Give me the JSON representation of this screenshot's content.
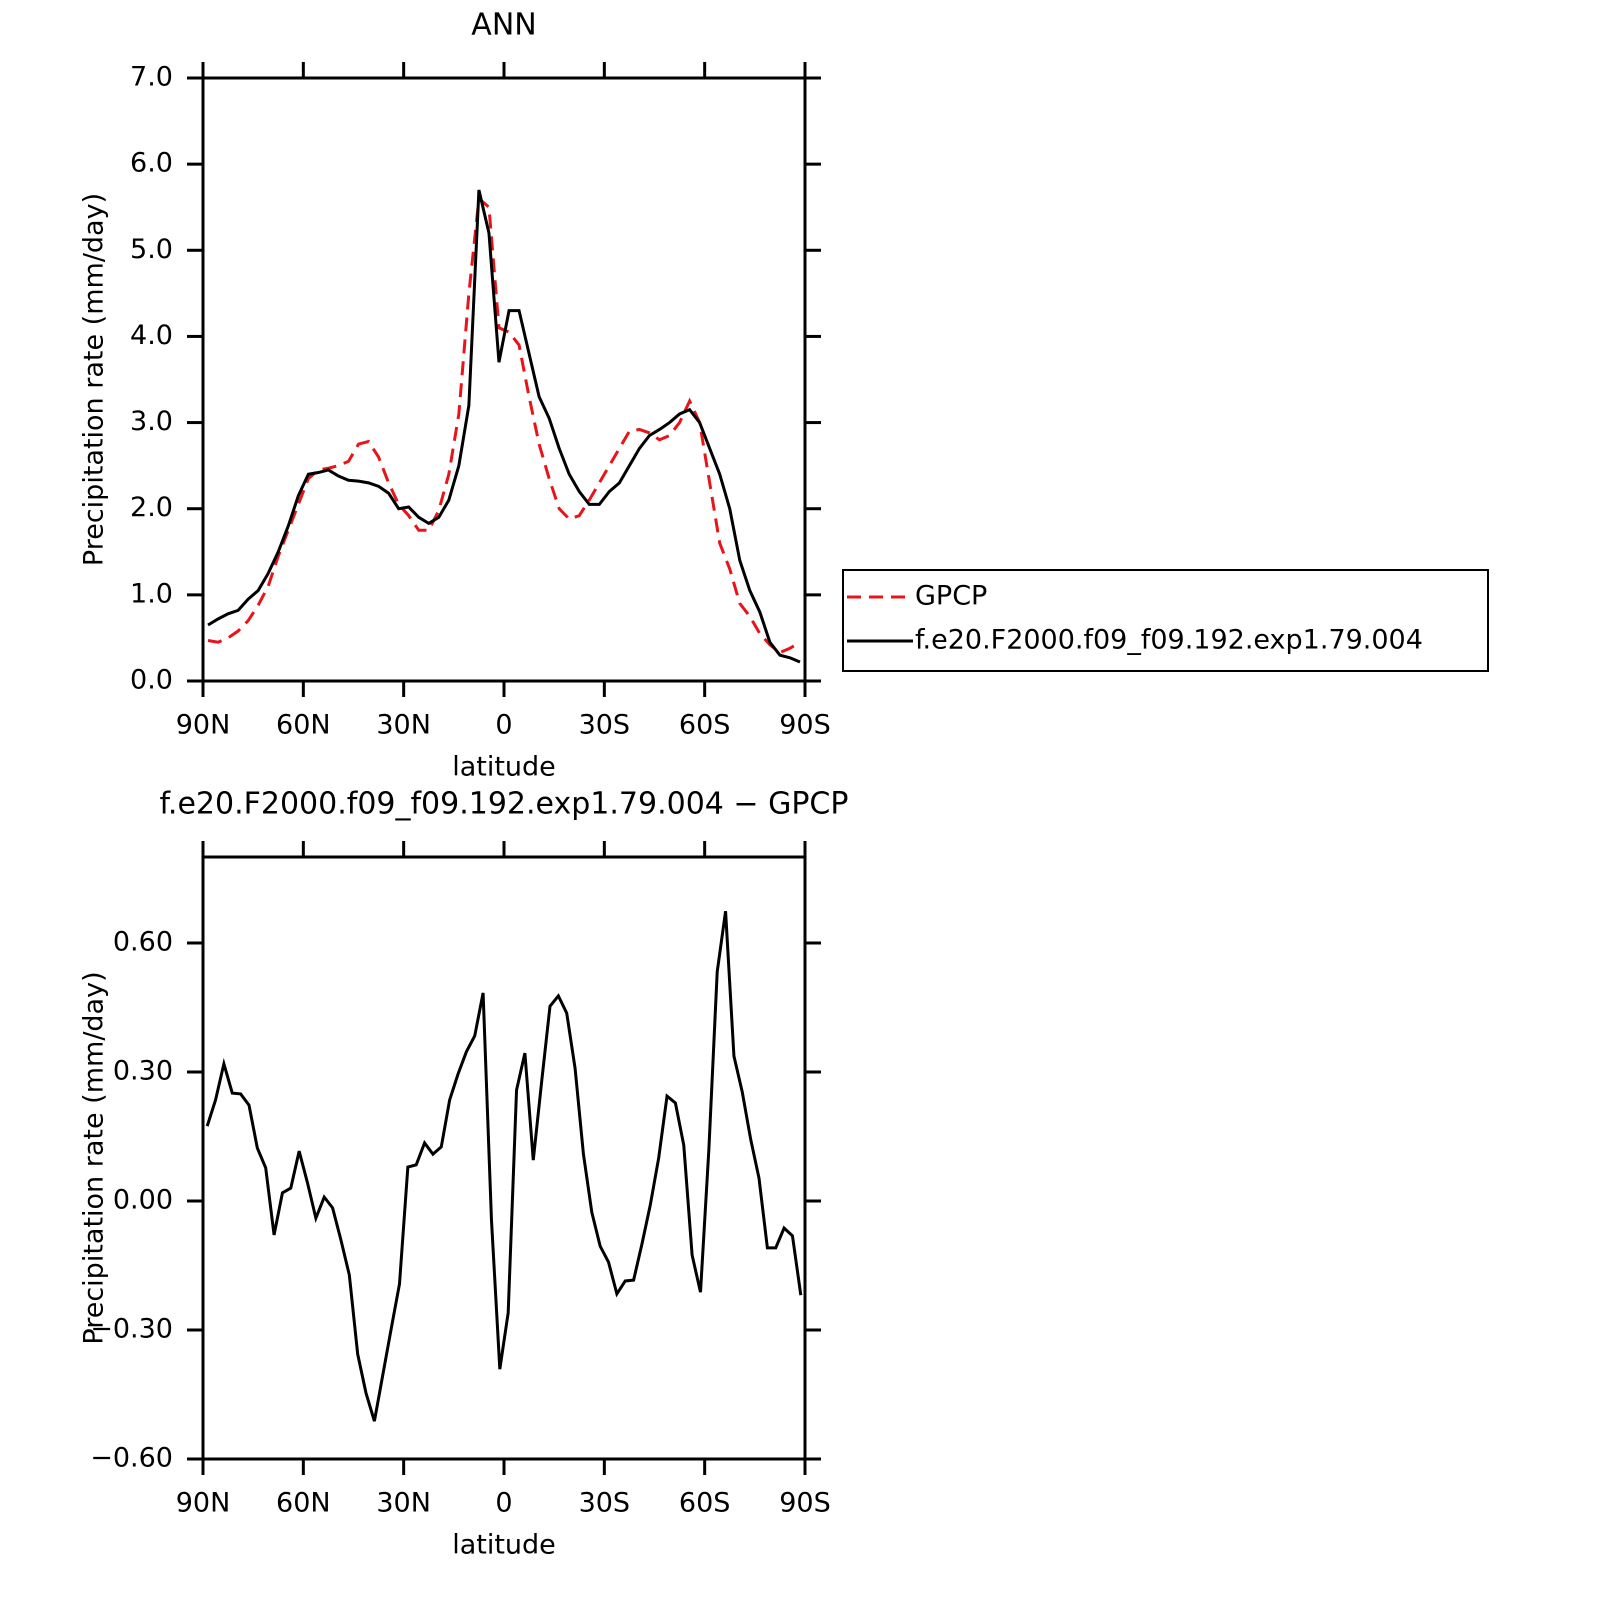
{
  "chart_data": [
    {
      "type": "line",
      "title": "ANN",
      "xlabel": "latitude",
      "ylabel": "Precipitation rate (mm/day)",
      "x": [
        88.5,
        85.5,
        82.5,
        79.5,
        76.5,
        73.5,
        70.5,
        67.5,
        64.5,
        61.5,
        58.5,
        55.5,
        52.5,
        49.5,
        46.5,
        43.5,
        40.5,
        37.5,
        34.5,
        31.5,
        28.5,
        25.5,
        22.5,
        19.5,
        16.5,
        13.5,
        10.5,
        7.5,
        4.5,
        1.5,
        -1.5,
        -4.5,
        -7.5,
        -10.5,
        -13.5,
        -16.5,
        -19.5,
        -22.5,
        -25.5,
        -28.5,
        -31.5,
        -34.5,
        -37.5,
        -40.5,
        -43.5,
        -46.5,
        -49.5,
        -52.5,
        -55.5,
        -58.5,
        -61.5,
        -64.5,
        -67.5,
        -70.5,
        -73.5,
        -76.5,
        -79.5,
        -82.5,
        -85.5,
        -88.5
      ],
      "series": [
        {
          "name": "GPCP",
          "color": "#e8141b",
          "style": "dashed",
          "values": [
            0.47,
            0.45,
            0.5,
            0.58,
            0.7,
            0.88,
            1.1,
            1.45,
            1.75,
            2.05,
            2.35,
            2.45,
            2.47,
            2.5,
            2.55,
            2.75,
            2.78,
            2.6,
            2.3,
            2.05,
            1.92,
            1.75,
            1.75,
            1.98,
            2.4,
            3.1,
            4.5,
            5.6,
            5.5,
            4.1,
            4.05,
            3.9,
            3.3,
            2.75,
            2.35,
            2.0,
            1.88,
            1.92,
            2.1,
            2.3,
            2.5,
            2.7,
            2.9,
            2.92,
            2.88,
            2.8,
            2.85,
            3.0,
            3.25,
            3.0,
            2.3,
            1.6,
            1.3,
            0.9,
            0.75,
            0.55,
            0.42,
            0.33,
            0.38,
            0.45
          ]
        },
        {
          "name": "f.e20.F2000.f09_f09.192.exp1.79.004",
          "color": "#000000",
          "style": "solid",
          "values": [
            0.65,
            0.72,
            0.78,
            0.82,
            0.95,
            1.05,
            1.25,
            1.5,
            1.8,
            2.15,
            2.4,
            2.42,
            2.45,
            2.38,
            2.33,
            2.32,
            2.3,
            2.26,
            2.18,
            2.0,
            2.02,
            1.9,
            1.83,
            1.9,
            2.1,
            2.5,
            3.2,
            5.7,
            5.2,
            3.7,
            4.3,
            4.3,
            3.8,
            3.3,
            3.05,
            2.7,
            2.4,
            2.2,
            2.05,
            2.05,
            2.2,
            2.3,
            2.5,
            2.7,
            2.85,
            2.92,
            3.0,
            3.1,
            3.15,
            3.0,
            2.7,
            2.4,
            2.0,
            1.4,
            1.05,
            0.8,
            0.45,
            0.3,
            0.27,
            0.22
          ]
        }
      ],
      "xlim": [
        90,
        -90
      ],
      "xticks": [
        {
          "value": 90,
          "label": "90N"
        },
        {
          "value": 60,
          "label": "60N"
        },
        {
          "value": 30,
          "label": "30N"
        },
        0,
        {
          "value": -30,
          "label": "30S"
        },
        {
          "value": -60,
          "label": "60S"
        },
        {
          "value": -90,
          "label": "90S"
        }
      ],
      "ylim": [
        0,
        7
      ],
      "yticks": [
        {
          "value": 0,
          "label": "0.0"
        },
        {
          "value": 1,
          "label": "1.0"
        },
        {
          "value": 2,
          "label": "2.0"
        },
        {
          "value": 3,
          "label": "3.0"
        },
        {
          "value": 4,
          "label": "4.0"
        },
        {
          "value": 5,
          "label": "5.0"
        },
        {
          "value": 6,
          "label": "6.0"
        },
        {
          "value": 7,
          "label": "7.0"
        }
      ],
      "legend": "outside-right"
    },
    {
      "type": "line",
      "title": "f.e20.F2000.f09_f09.192.exp1.79.004 − GPCP",
      "xlabel": "latitude",
      "ylabel": "Precipitation rate (mm/day)",
      "x": [
        88.75,
        86.25,
        83.75,
        81.25,
        78.75,
        76.25,
        73.75,
        71.25,
        68.75,
        66.25,
        63.75,
        61.25,
        58.75,
        56.25,
        53.75,
        51.25,
        48.75,
        46.25,
        43.75,
        41.25,
        38.75,
        36.25,
        33.75,
        31.25,
        28.75,
        26.25,
        23.75,
        21.25,
        18.75,
        16.25,
        13.75,
        11.25,
        8.75,
        6.25,
        3.75,
        1.25,
        -1.25,
        -3.75,
        -6.25,
        -8.75,
        -11.25,
        -13.75,
        -16.25,
        -18.75,
        -21.25,
        -23.75,
        -26.25,
        -28.75,
        -31.25,
        -33.75,
        -36.25,
        -38.75,
        -41.25,
        -43.75,
        -46.25,
        -48.75,
        -51.25,
        -53.75,
        -56.25,
        -58.75,
        -61.25,
        -63.75,
        -66.25,
        -68.75,
        -71.25,
        -73.75,
        -76.25,
        -78.75,
        -81.25,
        -83.75,
        -86.25,
        -88.75
      ],
      "color": "#000000",
      "values": [
        0.174,
        0.235,
        0.319,
        0.251,
        0.249,
        0.223,
        0.123,
        0.077,
        -0.079,
        0.019,
        0.03,
        0.116,
        0.042,
        -0.04,
        0.009,
        -0.016,
        -0.091,
        -0.172,
        -0.356,
        -0.447,
        -0.512,
        -0.405,
        -0.298,
        -0.193,
        0.079,
        0.084,
        0.135,
        0.109,
        0.126,
        0.235,
        0.295,
        0.347,
        0.384,
        0.484,
        -0.044,
        -0.391,
        -0.26,
        0.258,
        0.344,
        0.095,
        0.277,
        0.453,
        0.477,
        0.437,
        0.309,
        0.109,
        -0.026,
        -0.105,
        -0.142,
        -0.216,
        -0.186,
        -0.184,
        -0.1,
        -0.009,
        0.1,
        0.244,
        0.228,
        0.13,
        -0.126,
        -0.212,
        0.119,
        0.533,
        0.674,
        0.337,
        0.253,
        0.144,
        0.053,
        -0.109,
        -0.109,
        -0.063,
        -0.081,
        -0.219
      ],
      "xlim": [
        90,
        -90
      ],
      "xticks": [
        {
          "value": 90,
          "label": "90N"
        },
        {
          "value": 60,
          "label": "60N"
        },
        {
          "value": 30,
          "label": "30N"
        },
        0,
        {
          "value": -30,
          "label": "30S"
        },
        {
          "value": -60,
          "label": "60S"
        },
        {
          "value": -90,
          "label": "90S"
        }
      ],
      "ylim": [
        -0.6,
        0.8
      ],
      "yticks": [
        {
          "value": -0.6,
          "label": "−0.60"
        },
        {
          "value": -0.3,
          "label": "−0.30"
        },
        {
          "value": 0,
          "label": "0.00"
        },
        {
          "value": 0.3,
          "label": "0.30"
        },
        {
          "value": 0.6,
          "label": "0.60"
        }
      ]
    }
  ]
}
